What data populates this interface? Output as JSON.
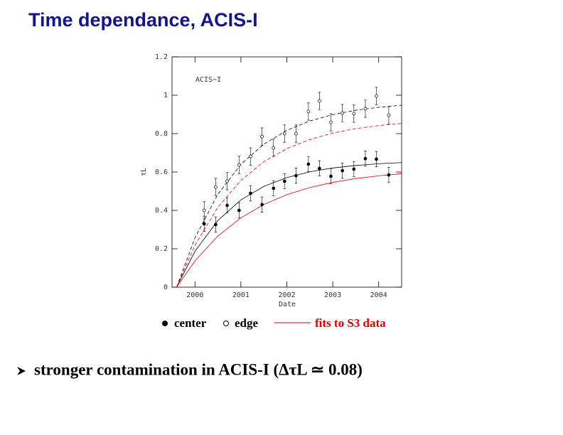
{
  "chart_data": {
    "type": "scatter",
    "title": "Time dependance, ACIS-I",
    "annotation": "ACIS−I",
    "xlabel": "Date",
    "ylabel": "τL",
    "xlim": [
      1999.5,
      2004.5
    ],
    "ylim": [
      0,
      1.2
    ],
    "xticks": [
      2000,
      2001,
      2002,
      2003,
      2004
    ],
    "yticks": [
      0,
      0.2,
      0.4,
      0.6,
      0.8,
      1,
      1.2
    ],
    "grid": false,
    "x": [
      2000.2,
      2000.45,
      2000.7,
      2000.96,
      2001.21,
      2001.46,
      2001.71,
      2001.95,
      2002.2,
      2002.47,
      2002.71,
      2002.96,
      2003.21,
      2003.46,
      2003.71,
      2003.95,
      2004.22
    ],
    "series": [
      {
        "name": "center",
        "marker": "filled",
        "color": "#000000",
        "values": [
          0.33,
          0.326,
          0.426,
          0.4,
          0.489,
          0.43,
          0.515,
          0.552,
          0.581,
          0.641,
          0.619,
          0.578,
          0.607,
          0.615,
          0.67,
          0.667,
          0.585
        ],
        "errors": [
          0.04,
          0.04,
          0.04,
          0.04,
          0.04,
          0.04,
          0.04,
          0.04,
          0.04,
          0.04,
          0.04,
          0.04,
          0.04,
          0.04,
          0.04,
          0.04,
          0.04
        ]
      },
      {
        "name": "edge",
        "marker": "open",
        "color": "#000000",
        "values": [
          0.4,
          0.522,
          0.552,
          0.637,
          0.681,
          0.785,
          0.726,
          0.8,
          0.8,
          0.915,
          0.97,
          0.859,
          0.907,
          0.904,
          0.93,
          0.996,
          0.896
        ],
        "errors": [
          0.045,
          0.045,
          0.045,
          0.045,
          0.045,
          0.045,
          0.045,
          0.045,
          0.045,
          0.045,
          0.045,
          0.045,
          0.045,
          0.045,
          0.045,
          0.045,
          0.045
        ]
      }
    ],
    "fits_label": "fits to S3 data",
    "fits_color": "#e00000",
    "fit_x": [
      1999.6,
      2000,
      2000.5,
      2001,
      2001.5,
      2002,
      2002.5,
      2003,
      2003.5,
      2004,
      2004.5
    ],
    "fits": [
      {
        "color": "#000000",
        "dashed": false,
        "values": [
          0,
          0.187,
          0.348,
          0.455,
          0.525,
          0.571,
          0.601,
          0.621,
          0.634,
          0.643,
          0.649
        ]
      },
      {
        "color": "#e00000",
        "dashed": false,
        "values": [
          0,
          0.137,
          0.267,
          0.361,
          0.431,
          0.482,
          0.519,
          0.546,
          0.566,
          0.58,
          0.591
        ]
      },
      {
        "color": "#000000",
        "dashed": true,
        "values": [
          0,
          0.257,
          0.485,
          0.64,
          0.745,
          0.817,
          0.866,
          0.899,
          0.922,
          0.937,
          0.948
        ]
      },
      {
        "color": "#e00000",
        "dashed": true,
        "values": [
          0,
          0.219,
          0.417,
          0.556,
          0.654,
          0.722,
          0.769,
          0.803,
          0.826,
          0.842,
          0.853
        ]
      }
    ]
  },
  "bullet": "stronger contamination in ACIS-I (ΔτL ≃ 0.08)"
}
